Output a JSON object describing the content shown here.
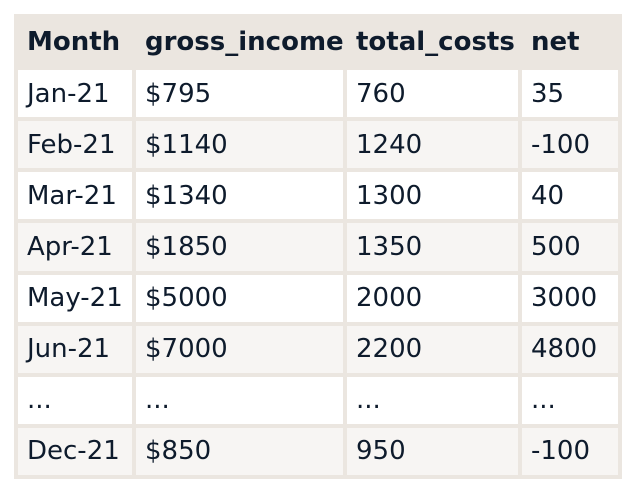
{
  "table": {
    "headers": [
      "Month",
      "gross_income",
      "total_costs",
      "net"
    ],
    "rows": [
      [
        "Jan-21",
        "$795",
        "760",
        "35"
      ],
      [
        "Feb-21",
        "$1140",
        "1240",
        "-100"
      ],
      [
        "Mar-21",
        "$1340",
        "1300",
        "40"
      ],
      [
        "Apr-21",
        "$1850",
        "1350",
        "500"
      ],
      [
        "May-21",
        "$5000",
        "2000",
        "3000"
      ],
      [
        "Jun-21",
        "$7000",
        "2200",
        "4800"
      ],
      [
        "...",
        "...",
        "...",
        "..."
      ],
      [
        "Dec-21",
        "$850",
        "950",
        "-100"
      ]
    ]
  },
  "colors": {
    "header_background": "#ebe6e0",
    "row_light": "#ffffff",
    "row_tint": "#f7f5f3",
    "text": "#0e1b2c"
  }
}
